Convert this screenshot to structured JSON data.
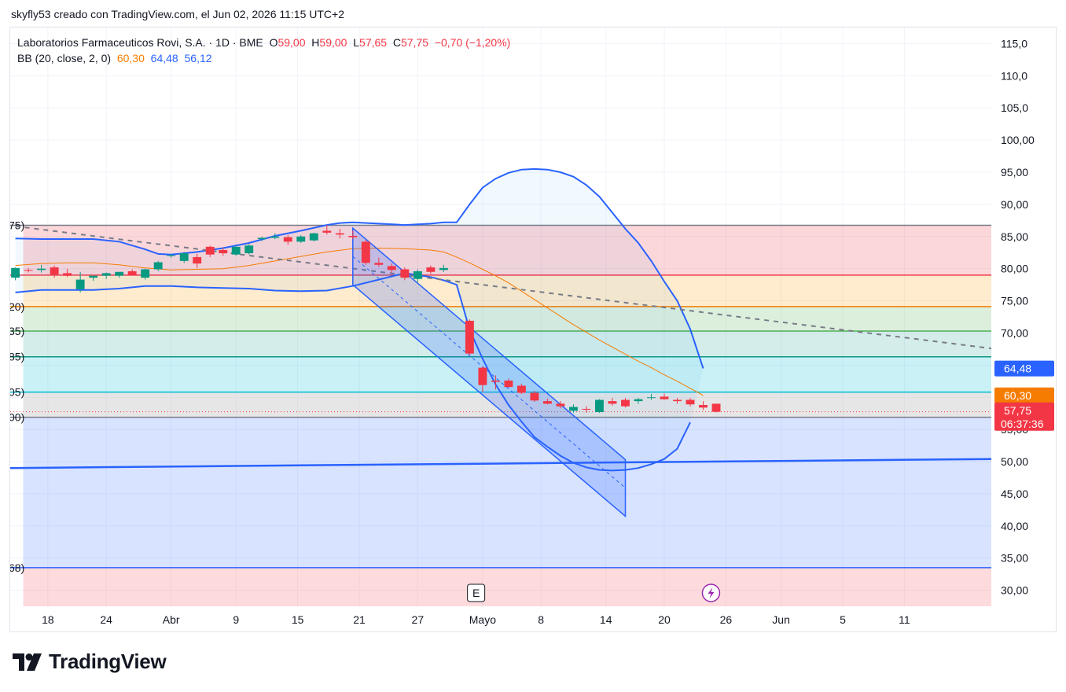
{
  "header": {
    "text": "skyfly53 creado con TradingView.com, el Jun 02, 2026 11:15 UTC+2"
  },
  "legend": {
    "symbol": "Laboratorios Farmaceuticos Rovi, S.A. · 1D · BME",
    "o_label": "O",
    "o_value": "59,00",
    "h_label": "H",
    "h_value": "59,00",
    "l_label": "L",
    "l_value": "57,65",
    "c_label": "C",
    "c_value": "57,75",
    "change": "−0,70 (−1,20%)",
    "bb_label": "BB (20, close, 2, 0)",
    "bb_basis": "60,30",
    "bb_upper": "64,48",
    "bb_lower": "56,12"
  },
  "price_tags": {
    "upper": "64,48",
    "basis": "60,30",
    "last": "57,75",
    "countdown": "06:37:36",
    "lower": "56,12"
  },
  "markers": {
    "earnings": "E"
  },
  "fib_left_labels": [
    "75)",
    "20)",
    "35)",
    "85)",
    "05)",
    "00)",
    "68)"
  ],
  "colors": {
    "up": "#089981",
    "down": "#f23645",
    "bb_band": "#2962ff",
    "bb_basis": "#f57c00",
    "tag_blue": "#2962ff",
    "tag_orange": "#f57c00",
    "tag_red": "#f23645"
  },
  "brand": {
    "name": "TradingView"
  },
  "chart_data": {
    "type": "candlestick",
    "title": "Laboratorios Farmaceuticos Rovi, S.A. · 1D · BME",
    "y_axis_ticks": [
      "115,0",
      "110,0",
      "105,0",
      "100,00",
      "95,00",
      "90,00",
      "85,00",
      "80,00",
      "75,00",
      "70,00",
      "65,00",
      "60,00",
      "55,00",
      "50,00",
      "45,00",
      "40,00",
      "35,00",
      "30,00"
    ],
    "y_tick_values": [
      115,
      110,
      105,
      100,
      95,
      90,
      85,
      80,
      75,
      70,
      65,
      60,
      55,
      50,
      45,
      40,
      35,
      30
    ],
    "x_axis_ticks": [
      "18",
      "24",
      "Abr",
      "9",
      "15",
      "21",
      "27",
      "Mayo",
      "8",
      "14",
      "20",
      "26",
      "Jun",
      "5",
      "11"
    ],
    "x_tick_positions": [
      0.5,
      5,
      10,
      15,
      19.75,
      24.5,
      29,
      34,
      38.5,
      43.5,
      48,
      52.75,
      57,
      61.75,
      66.5
    ],
    "ylim": [
      27.5,
      117.5
    ],
    "xlim": [
      -2.4,
      73.2
    ],
    "candles": [
      {
        "i": -2,
        "o": 78.6,
        "h": 80.2,
        "l": 78.2,
        "c": 80.1
      },
      {
        "i": -1,
        "o": 79.8,
        "h": 80.1,
        "l": 79.4,
        "c": 79.7
      },
      {
        "i": 0,
        "o": 79.8,
        "h": 80.6,
        "l": 79.4,
        "c": 80.0
      },
      {
        "i": 1,
        "o": 80.2,
        "h": 80.5,
        "l": 78.6,
        "c": 79.1
      },
      {
        "i": 2,
        "o": 79.3,
        "h": 80.0,
        "l": 78.7,
        "c": 78.9
      },
      {
        "i": 3,
        "o": 76.8,
        "h": 79.5,
        "l": 76.3,
        "c": 78.3
      },
      {
        "i": 4,
        "o": 78.6,
        "h": 78.9,
        "l": 78.1,
        "c": 78.9
      },
      {
        "i": 5,
        "o": 78.9,
        "h": 79.4,
        "l": 78.4,
        "c": 79.3
      },
      {
        "i": 6,
        "o": 78.9,
        "h": 79.4,
        "l": 78.6,
        "c": 79.5
      },
      {
        "i": 7,
        "o": 79.6,
        "h": 79.9,
        "l": 78.9,
        "c": 79.0
      },
      {
        "i": 8,
        "o": 78.6,
        "h": 80.0,
        "l": 78.3,
        "c": 79.9
      },
      {
        "i": 9,
        "o": 79.9,
        "h": 81.2,
        "l": 79.6,
        "c": 81.0
      },
      {
        "i": 10,
        "o": 82.0,
        "h": 82.3,
        "l": 81.7,
        "c": 82.1
      },
      {
        "i": 11,
        "o": 81.2,
        "h": 82.6,
        "l": 80.9,
        "c": 82.4
      },
      {
        "i": 12,
        "o": 81.8,
        "h": 82.3,
        "l": 80.1,
        "c": 80.8
      },
      {
        "i": 13,
        "o": 83.4,
        "h": 83.6,
        "l": 81.8,
        "c": 82.2
      },
      {
        "i": 14,
        "o": 82.9,
        "h": 83.3,
        "l": 82.0,
        "c": 82.4
      },
      {
        "i": 15,
        "o": 82.2,
        "h": 83.5,
        "l": 82.0,
        "c": 83.4
      },
      {
        "i": 16,
        "o": 82.4,
        "h": 83.8,
        "l": 82.2,
        "c": 83.6
      },
      {
        "i": 17,
        "o": 84.6,
        "h": 85.0,
        "l": 84.3,
        "c": 84.8
      },
      {
        "i": 18,
        "o": 84.8,
        "h": 85.5,
        "l": 84.6,
        "c": 85.0
      },
      {
        "i": 19,
        "o": 84.9,
        "h": 85.2,
        "l": 83.7,
        "c": 84.2
      },
      {
        "i": 20,
        "o": 84.2,
        "h": 85.2,
        "l": 84.0,
        "c": 85.0
      },
      {
        "i": 21,
        "o": 84.4,
        "h": 85.6,
        "l": 84.2,
        "c": 85.5
      },
      {
        "i": 22,
        "o": 85.9,
        "h": 86.8,
        "l": 85.3,
        "c": 85.6
      },
      {
        "i": 23,
        "o": 85.5,
        "h": 86.2,
        "l": 84.7,
        "c": 85.3
      },
      {
        "i": 24,
        "o": 85.1,
        "h": 85.9,
        "l": 84.6,
        "c": 84.9
      },
      {
        "i": 25,
        "o": 84.2,
        "h": 84.5,
        "l": 80.6,
        "c": 80.9
      },
      {
        "i": 26,
        "o": 80.9,
        "h": 81.7,
        "l": 80.3,
        "c": 80.6
      },
      {
        "i": 27,
        "o": 80.4,
        "h": 80.8,
        "l": 79.3,
        "c": 79.8
      },
      {
        "i": 28,
        "o": 79.9,
        "h": 80.2,
        "l": 78.2,
        "c": 78.6
      },
      {
        "i": 29,
        "o": 78.4,
        "h": 79.9,
        "l": 77.9,
        "c": 79.6
      },
      {
        "i": 30,
        "o": 80.2,
        "h": 80.5,
        "l": 79.2,
        "c": 79.5
      },
      {
        "i": 31,
        "o": 79.8,
        "h": 80.6,
        "l": 79.5,
        "c": 80.1
      },
      {
        "i": 33,
        "o": 71.9,
        "h": 72.1,
        "l": 66.6,
        "c": 66.8
      },
      {
        "i": 34,
        "o": 64.6,
        "h": 64.8,
        "l": 60.8,
        "c": 61.9
      },
      {
        "i": 35,
        "o": 62.6,
        "h": 63.4,
        "l": 61.2,
        "c": 62.4
      },
      {
        "i": 36,
        "o": 62.6,
        "h": 62.9,
        "l": 61.5,
        "c": 61.6
      },
      {
        "i": 37,
        "o": 61.8,
        "h": 62.1,
        "l": 60.5,
        "c": 60.7
      },
      {
        "i": 38,
        "o": 60.7,
        "h": 61.0,
        "l": 59.3,
        "c": 59.5
      },
      {
        "i": 39,
        "o": 59.4,
        "h": 59.8,
        "l": 58.9,
        "c": 59.0
      },
      {
        "i": 40,
        "o": 59.0,
        "h": 59.4,
        "l": 58.3,
        "c": 58.6
      },
      {
        "i": 41,
        "o": 57.9,
        "h": 58.9,
        "l": 57.6,
        "c": 58.5
      },
      {
        "i": 42,
        "o": 58.2,
        "h": 58.6,
        "l": 57.6,
        "c": 58.1
      },
      {
        "i": 43,
        "o": 57.7,
        "h": 59.7,
        "l": 57.6,
        "c": 59.6
      },
      {
        "i": 44,
        "o": 59.4,
        "h": 59.9,
        "l": 58.7,
        "c": 59.0
      },
      {
        "i": 45,
        "o": 59.6,
        "h": 59.9,
        "l": 58.4,
        "c": 58.6
      },
      {
        "i": 46,
        "o": 59.4,
        "h": 59.9,
        "l": 59.0,
        "c": 59.7
      },
      {
        "i": 47,
        "o": 59.9,
        "h": 60.5,
        "l": 59.6,
        "c": 60.0
      },
      {
        "i": 48,
        "o": 60.1,
        "h": 60.6,
        "l": 59.6,
        "c": 59.7
      },
      {
        "i": 49,
        "o": 59.6,
        "h": 59.9,
        "l": 59.0,
        "c": 59.4
      },
      {
        "i": 50,
        "o": 59.6,
        "h": 59.9,
        "l": 58.6,
        "c": 58.9
      },
      {
        "i": 51,
        "o": 58.8,
        "h": 59.4,
        "l": 58.0,
        "c": 58.4
      },
      {
        "i": 52,
        "o": 59.0,
        "h": 59.0,
        "l": 57.65,
        "c": 57.75
      }
    ],
    "bb_upper": [
      [
        -2,
        84.7
      ],
      [
        0,
        84.6
      ],
      [
        2,
        84.6
      ],
      [
        4,
        84.6
      ],
      [
        6,
        84.2
      ],
      [
        8,
        83.0
      ],
      [
        9,
        82.3
      ],
      [
        10,
        82.2
      ],
      [
        12,
        82.6
      ],
      [
        14,
        83.2
      ],
      [
        16,
        84.0
      ],
      [
        18,
        85.1
      ],
      [
        20,
        85.9
      ],
      [
        22,
        86.8
      ],
      [
        23,
        87.1
      ],
      [
        24,
        87.2
      ],
      [
        26,
        87.0
      ],
      [
        28,
        86.8
      ],
      [
        30,
        87.0
      ],
      [
        31,
        87.2
      ],
      [
        32,
        87.2
      ],
      [
        33,
        90.0
      ],
      [
        34,
        92.6
      ],
      [
        35,
        94.0
      ],
      [
        36,
        94.9
      ],
      [
        37,
        95.4
      ],
      [
        38,
        95.5
      ],
      [
        39,
        95.4
      ],
      [
        40,
        95.0
      ],
      [
        41,
        94.3
      ],
      [
        42,
        93.0
      ],
      [
        43,
        91.2
      ],
      [
        44,
        88.7
      ],
      [
        45,
        86.2
      ],
      [
        46,
        84.0
      ],
      [
        47,
        81.2
      ],
      [
        48,
        78.0
      ],
      [
        49,
        75.0
      ],
      [
        50,
        70.6
      ],
      [
        51,
        64.5
      ]
    ],
    "bb_basis": [
      [
        -2,
        80.5
      ],
      [
        0,
        80.8
      ],
      [
        2,
        80.9
      ],
      [
        4,
        80.9
      ],
      [
        6,
        80.6
      ],
      [
        8,
        80.1
      ],
      [
        10,
        79.8
      ],
      [
        12,
        79.9
      ],
      [
        14,
        80.0
      ],
      [
        16,
        80.5
      ],
      [
        18,
        81.2
      ],
      [
        20,
        81.9
      ],
      [
        22,
        82.6
      ],
      [
        24,
        83.1
      ],
      [
        26,
        83.2
      ],
      [
        28,
        83.1
      ],
      [
        30,
        82.9
      ],
      [
        31,
        82.6
      ],
      [
        32,
        81.8
      ],
      [
        33,
        80.9
      ],
      [
        34,
        79.9
      ],
      [
        35,
        78.9
      ],
      [
        36,
        77.8
      ],
      [
        37,
        76.5
      ],
      [
        38,
        75.2
      ],
      [
        39,
        73.9
      ],
      [
        40,
        72.6
      ],
      [
        41,
        71.3
      ],
      [
        42,
        70.1
      ],
      [
        43,
        68.9
      ],
      [
        44,
        67.8
      ],
      [
        45,
        66.7
      ],
      [
        46,
        65.6
      ],
      [
        47,
        64.6
      ],
      [
        48,
        63.5
      ],
      [
        49,
        62.5
      ],
      [
        50,
        61.4
      ],
      [
        51,
        60.3
      ]
    ],
    "bb_lower": [
      [
        -2,
        76.3
      ],
      [
        0,
        76.7
      ],
      [
        2,
        76.7
      ],
      [
        4,
        76.7
      ],
      [
        6,
        76.9
      ],
      [
        8,
        77.3
      ],
      [
        10,
        77.3
      ],
      [
        12,
        77.1
      ],
      [
        14,
        77.0
      ],
      [
        16,
        76.9
      ],
      [
        18,
        76.6
      ],
      [
        20,
        76.5
      ],
      [
        22,
        76.6
      ],
      [
        24,
        77.3
      ],
      [
        26,
        78.3
      ],
      [
        28,
        79.3
      ],
      [
        30,
        78.7
      ],
      [
        31,
        78.2
      ],
      [
        32,
        77.5
      ],
      [
        33,
        70.5
      ],
      [
        34,
        66.0
      ],
      [
        35,
        62.0
      ],
      [
        36,
        58.8
      ],
      [
        37,
        56.2
      ],
      [
        38,
        53.8
      ],
      [
        39,
        52.3
      ],
      [
        40,
        50.9
      ],
      [
        41,
        49.8
      ],
      [
        42,
        49.1
      ],
      [
        43,
        48.7
      ],
      [
        44,
        48.6
      ],
      [
        45,
        48.7
      ],
      [
        46,
        49.0
      ],
      [
        47,
        49.6
      ],
      [
        48,
        50.4
      ],
      [
        49,
        52.0
      ],
      [
        50,
        56.1
      ]
    ],
    "fib_levels": [
      86.75,
      79.0,
      74.1,
      70.3,
      66.3,
      60.8,
      56.9,
      33.5
    ],
    "trend_dashed": [
      [
        -2,
        86.6
      ],
      [
        73.2,
        67.6
      ]
    ],
    "trend_blue": [
      [
        -2.4,
        49.0
      ],
      [
        73.2,
        50.4
      ]
    ]
  }
}
